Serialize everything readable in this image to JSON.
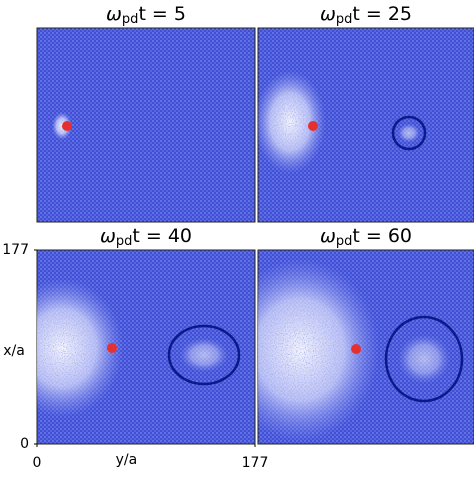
{
  "chart_data": [
    {
      "type": "image",
      "title": {
        "symbol": "ω",
        "subscript": "pd",
        "text": "t = 5"
      }
    },
    {
      "type": "image",
      "title": {
        "symbol": "ω",
        "subscript": "pd",
        "text": "t = 25"
      }
    },
    {
      "type": "image",
      "title": {
        "symbol": "ω",
        "subscript": "pd",
        "text": "t = 40"
      },
      "xlabel": "y/a",
      "ylabel": "x/a",
      "xlim": [
        0,
        177
      ],
      "ylim": [
        0,
        177
      ],
      "xticks": [
        0,
        177
      ],
      "yticks": [
        0,
        177
      ]
    },
    {
      "type": "image",
      "title": {
        "symbol": "ω",
        "subscript": "pd",
        "text": "t = 60"
      }
    }
  ]
}
